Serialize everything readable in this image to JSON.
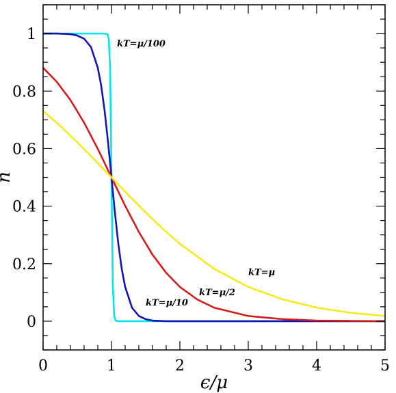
{
  "chart_data": {
    "type": "line",
    "title": "",
    "xlabel": "ϵ/μ",
    "ylabel": "n",
    "xlim": [
      0,
      5
    ],
    "ylim": [
      -0.1,
      1.1
    ],
    "grid": false,
    "x_ticks": [
      0,
      1,
      2,
      3,
      4,
      5
    ],
    "x_tick_labels": [
      "0",
      "1",
      "2",
      "3",
      "4",
      "5"
    ],
    "y_ticks": [
      0,
      0.2,
      0.4,
      0.6,
      0.8,
      1
    ],
    "y_tick_labels": [
      "0",
      "0.2",
      "0.4",
      "0.6",
      "0.8",
      "1"
    ],
    "series": [
      {
        "name": "kT=μ/100",
        "color": "#00e5ee",
        "x": [
          0,
          0.5,
          0.9,
          0.94,
          0.96,
          0.98,
          1.0,
          1.02,
          1.04,
          1.06,
          1.1,
          1.5,
          2,
          3,
          4,
          5
        ],
        "y": [
          1.0,
          1.0,
          1.0,
          0.998,
          0.982,
          0.881,
          0.5,
          0.119,
          0.018,
          0.002,
          0.0,
          0.0,
          0.0,
          0.0,
          0.0,
          0.0
        ]
      },
      {
        "name": "kT=μ/10",
        "color": "#1414b4",
        "x": [
          0,
          0.2,
          0.4,
          0.5,
          0.6,
          0.7,
          0.8,
          0.85,
          0.9,
          0.95,
          1.0,
          1.05,
          1.1,
          1.15,
          1.2,
          1.3,
          1.4,
          1.5,
          1.6,
          1.8,
          2.0,
          3,
          4,
          5
        ],
        "y": [
          1.0,
          1.0,
          0.998,
          0.993,
          0.982,
          0.953,
          0.881,
          0.818,
          0.731,
          0.622,
          0.5,
          0.378,
          0.269,
          0.182,
          0.119,
          0.047,
          0.018,
          0.007,
          0.002,
          0.0,
          0.0,
          0.0,
          0.0,
          0.0
        ]
      },
      {
        "name": "kT=μ/2",
        "color": "#d41c1c",
        "x": [
          0,
          0.2,
          0.4,
          0.6,
          0.8,
          1.0,
          1.2,
          1.4,
          1.6,
          1.8,
          2.0,
          2.25,
          2.5,
          3.0,
          3.5,
          4.0,
          4.5,
          5.0
        ],
        "y": [
          0.881,
          0.832,
          0.769,
          0.69,
          0.599,
          0.5,
          0.401,
          0.31,
          0.231,
          0.168,
          0.119,
          0.076,
          0.047,
          0.018,
          0.007,
          0.002,
          0.001,
          0.0
        ]
      },
      {
        "name": "kT=μ",
        "color": "#f5ea1a",
        "x": [
          0,
          0.25,
          0.5,
          0.75,
          1.0,
          1.25,
          1.5,
          1.75,
          2.0,
          2.5,
          3.0,
          3.5,
          4.0,
          4.5,
          5.0
        ],
        "y": [
          0.731,
          0.679,
          0.622,
          0.562,
          0.5,
          0.438,
          0.378,
          0.321,
          0.269,
          0.182,
          0.119,
          0.076,
          0.047,
          0.029,
          0.018
        ]
      }
    ],
    "annotations": [
      {
        "text": "kT=μ/100",
        "x": 1.08,
        "y": 0.955
      },
      {
        "text": "kT=μ/10",
        "x": 1.5,
        "y": 0.055
      },
      {
        "text": "kT=μ/2",
        "x": 2.28,
        "y": 0.09
      },
      {
        "text": "kT=μ",
        "x": 3.0,
        "y": 0.16
      }
    ]
  }
}
